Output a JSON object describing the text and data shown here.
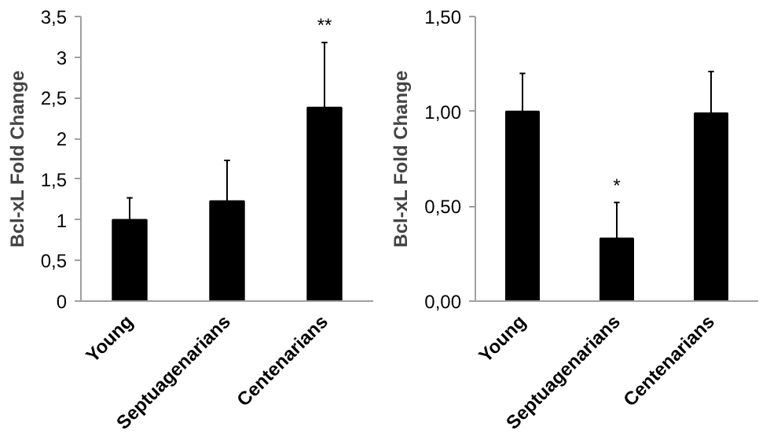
{
  "chart_data": [
    {
      "type": "bar",
      "ylabel": "Bcl-xL Fold Change",
      "categories": [
        "Young",
        "Septuagenarians",
        "Centenarians"
      ],
      "values": [
        1.0,
        1.23,
        2.38
      ],
      "colors": [
        "#000000",
        "#000000",
        "#000000"
      ],
      "errors": [
        [
          1.0,
          1.27
        ],
        [
          1.23,
          1.73
        ],
        [
          2.38,
          3.18
        ]
      ],
      "ylim": [
        0,
        3.5
      ],
      "yticks": [
        0,
        {
          "value": 0.5,
          "label": "0,5"
        },
        1,
        {
          "value": 1.5,
          "label": "1,5"
        },
        2,
        {
          "value": 2.5,
          "label": "2,5"
        },
        3,
        {
          "value": 3.5,
          "label": "3,5"
        }
      ],
      "grid": false,
      "annotations": [
        {
          "text": "**",
          "x": "Centenarians",
          "y": 3.18
        }
      ]
    },
    {
      "type": "bar",
      "ylabel": "Bcl-xL Fold Change",
      "categories": [
        "Young",
        "Septuagenarians",
        "Centenarians"
      ],
      "values": [
        1.0,
        0.33,
        0.99
      ],
      "colors": [
        "#000000",
        "#000000",
        "#000000"
      ],
      "errors": [
        [
          1.0,
          1.2
        ],
        [
          0.33,
          0.52
        ],
        [
          0.99,
          1.21
        ]
      ],
      "ylim": [
        0,
        1.5
      ],
      "yticks": [
        {
          "value": 0,
          "label": "0,00"
        },
        {
          "value": 0.5,
          "label": "0,50"
        },
        {
          "value": 1.0,
          "label": "1,00"
        },
        {
          "value": 1.5,
          "label": "1,50"
        }
      ],
      "grid": false,
      "annotations": [
        {
          "text": "*",
          "x": "Septuagenarians",
          "y": 0.52
        }
      ]
    }
  ]
}
